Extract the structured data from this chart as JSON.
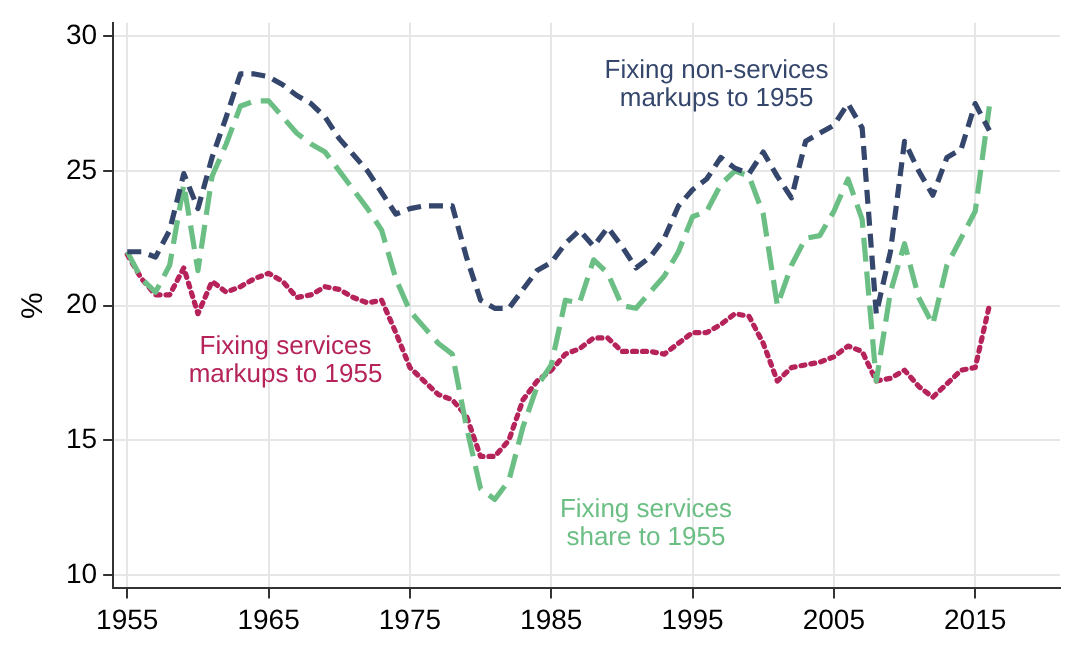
{
  "chart_data": {
    "type": "line",
    "ylabel": "%",
    "x": [
      1955,
      1956,
      1957,
      1958,
      1959,
      1960,
      1961,
      1962,
      1963,
      1964,
      1965,
      1966,
      1967,
      1968,
      1969,
      1970,
      1971,
      1972,
      1973,
      1974,
      1975,
      1976,
      1977,
      1978,
      1979,
      1980,
      1981,
      1982,
      1983,
      1984,
      1985,
      1986,
      1987,
      1988,
      1989,
      1990,
      1991,
      1992,
      1993,
      1994,
      1995,
      1996,
      1997,
      1998,
      1999,
      2000,
      2001,
      2002,
      2003,
      2004,
      2005,
      2006,
      2007,
      2008,
      2009,
      2010,
      2011,
      2012,
      2013,
      2014,
      2015,
      2016
    ],
    "series": [
      {
        "name": "Fixing non-services markups to 1955",
        "color": "#34466b",
        "line_style": "dashed",
        "values": [
          22,
          22,
          21.8,
          22.8,
          24.9,
          23.6,
          25.5,
          27,
          28.6,
          28.6,
          28.5,
          28.2,
          27.8,
          27.5,
          27,
          26.2,
          25.6,
          25,
          24.2,
          23.4,
          23.6,
          23.7,
          23.7,
          23.7,
          21.8,
          20.2,
          19.9,
          19.9,
          20.6,
          21.3,
          21.6,
          22.3,
          22.8,
          22.2,
          22.9,
          22.2,
          21.4,
          21.8,
          22.5,
          23.7,
          24.3,
          24.7,
          25.5,
          25.1,
          24.9,
          25.7,
          24.8,
          24,
          26.1,
          26.4,
          26.7,
          27.5,
          26.6,
          19.7,
          22,
          26.1,
          25,
          24.1,
          25.5,
          25.8,
          27.5,
          26.5
        ]
      },
      {
        "name": "Fixing services share to 1955",
        "color": "#6cbf84",
        "line_style": "dashed",
        "values": [
          22,
          21,
          20.5,
          21.5,
          24.5,
          21.3,
          24.8,
          26,
          27.4,
          27.6,
          27.6,
          27,
          26.4,
          26,
          25.7,
          25,
          24.3,
          23.6,
          22.8,
          21,
          19.8,
          19.2,
          18.6,
          18.2,
          15.5,
          13.2,
          12.8,
          13.5,
          15.5,
          17,
          17.8,
          20.2,
          20.1,
          21.7,
          21.2,
          20,
          19.9,
          20.5,
          21.1,
          22,
          23.3,
          23.5,
          24.5,
          25,
          24.8,
          23.4,
          20,
          21.5,
          22.5,
          22.6,
          23.5,
          24.7,
          23.2,
          17.2,
          20.5,
          22.3,
          20.3,
          19.3,
          21.5,
          22.5,
          23.5,
          27.4
        ]
      },
      {
        "name": "Fixing services markups to 1955",
        "color": "#b5235a",
        "line_style": "dotted",
        "values": [
          21.9,
          21,
          20.4,
          20.4,
          21.4,
          19.7,
          20.9,
          20.5,
          20.7,
          21,
          21.2,
          20.9,
          20.3,
          20.4,
          20.7,
          20.6,
          20.3,
          20.1,
          20.2,
          19,
          17.7,
          17.2,
          16.7,
          16.5,
          15.9,
          14.4,
          14.4,
          15,
          16.5,
          17.2,
          17.6,
          18.2,
          18.4,
          18.8,
          18.8,
          18.3,
          18.3,
          18.3,
          18.2,
          18.6,
          19,
          19,
          19.3,
          19.7,
          19.6,
          18.6,
          17.2,
          17.7,
          17.8,
          17.9,
          18.1,
          18.5,
          18.3,
          17.2,
          17.3,
          17.6,
          17,
          16.6,
          17.1,
          17.6,
          17.7,
          20
        ]
      }
    ],
    "xlim": [
      1954,
      2021
    ],
    "xticks": [
      1955,
      1965,
      1975,
      1985,
      1995,
      2005,
      2015
    ],
    "ylim": [
      9.5,
      30.5
    ],
    "yticks": [
      10,
      15,
      20,
      25,
      30
    ],
    "grid": true,
    "legend": false,
    "marker": "none"
  }
}
